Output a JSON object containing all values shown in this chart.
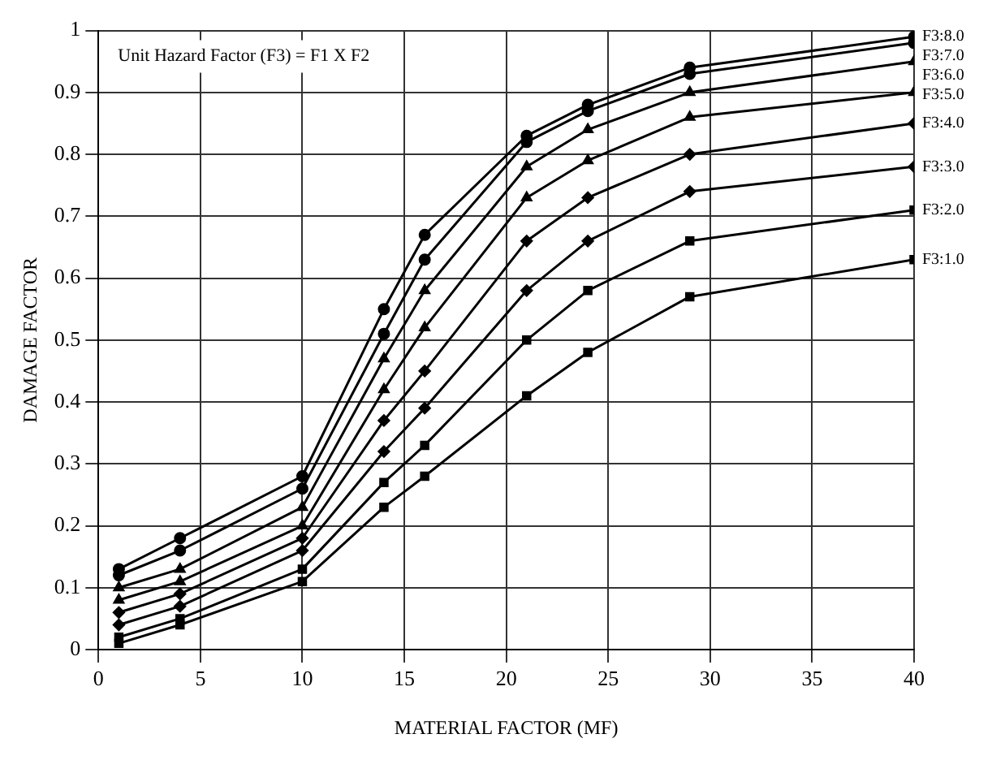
{
  "chart_data": {
    "type": "line",
    "xlabel": "MATERIAL FACTOR (MF)",
    "ylabel": "DAMAGE FACTOR",
    "annotations": [
      "Unit Hazard Factor (F3) = F1 X F2"
    ],
    "x": [
      1,
      4,
      10,
      14,
      16,
      21,
      24,
      29,
      40
    ],
    "xlim": [
      0,
      40
    ],
    "xticks": [
      0,
      5,
      10,
      15,
      20,
      25,
      30,
      35,
      40
    ],
    "ylim": [
      0,
      1
    ],
    "yticks": [
      0,
      0.1,
      0.2,
      0.3,
      0.4,
      0.5,
      0.6,
      0.7,
      0.8,
      0.9,
      1
    ],
    "grid": true,
    "legend": false,
    "series": [
      {
        "name": "F3:1.0",
        "color": "#000000",
        "marker": "square",
        "values": [
          0.01,
          0.04,
          0.11,
          0.23,
          0.28,
          0.41,
          0.48,
          0.57,
          0.63
        ]
      },
      {
        "name": "F3:2.0",
        "color": "#000000",
        "marker": "square",
        "values": [
          0.02,
          0.05,
          0.13,
          0.27,
          0.33,
          0.5,
          0.58,
          0.66,
          0.71
        ]
      },
      {
        "name": "F3:3.0",
        "color": "#000000",
        "marker": "diamond",
        "values": [
          0.04,
          0.07,
          0.16,
          0.32,
          0.39,
          0.58,
          0.66,
          0.74,
          0.78
        ]
      },
      {
        "name": "F3:4.0",
        "color": "#000000",
        "marker": "diamond",
        "values": [
          0.06,
          0.09,
          0.18,
          0.37,
          0.45,
          0.66,
          0.73,
          0.8,
          0.85
        ]
      },
      {
        "name": "F3:5.0",
        "color": "#000000",
        "marker": "triangle",
        "values": [
          0.08,
          0.11,
          0.2,
          0.42,
          0.52,
          0.73,
          0.79,
          0.86,
          0.9
        ]
      },
      {
        "name": "F3:6.0",
        "color": "#000000",
        "marker": "triangle",
        "values": [
          0.1,
          0.13,
          0.23,
          0.47,
          0.58,
          0.78,
          0.84,
          0.9,
          0.95
        ]
      },
      {
        "name": "F3:7.0",
        "color": "#000000",
        "marker": "circle",
        "values": [
          0.12,
          0.16,
          0.26,
          0.51,
          0.63,
          0.82,
          0.87,
          0.93,
          0.98
        ]
      },
      {
        "name": "F3:8.0",
        "color": "#000000",
        "marker": "circle",
        "values": [
          0.13,
          0.18,
          0.28,
          0.55,
          0.67,
          0.83,
          0.88,
          0.94,
          0.99
        ]
      }
    ]
  }
}
